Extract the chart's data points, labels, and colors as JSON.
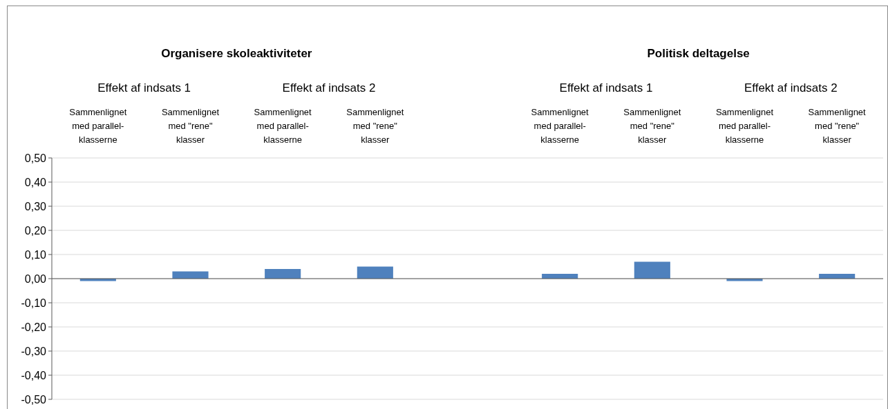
{
  "chart_data": {
    "type": "bar",
    "categories": [
      "Sammenlignet\nmed parallel-\nklasserne",
      "Sammenlignet\nmed \"rene\"\nklasser",
      "Sammenlignet\nmed parallel-\nklasserne",
      "Sammenlignet\nmed \"rene\"\nklasser",
      null,
      "Sammenlignet\nmed parallel-\nklasserne",
      "Sammenlignet\nmed \"rene\"\nklasser",
      "Sammenlignet\nmed parallel-\nklasserne",
      "Sammenlignet\nmed \"rene\"\nklasser"
    ],
    "values": [
      -0.01,
      0.03,
      0.04,
      0.05,
      null,
      0.02,
      0.07,
      -0.01,
      0.02
    ],
    "color": "#4f81bd",
    "annotations": [
      "Organisere skoleaktiviteter",
      "Politisk deltagelse",
      "Effekt af indsats 1",
      "Effekt af indsats 2",
      "Effekt af indsats 1",
      "Effekt af indsats 2"
    ],
    "ylim": [
      -0.5,
      0.5
    ],
    "yticks": [
      {
        "value": -0.5,
        "label": "-0,50"
      },
      {
        "value": -0.4,
        "label": "-0,40"
      },
      {
        "value": -0.3,
        "label": "-0,30"
      },
      {
        "value": -0.2,
        "label": "-0,20"
      },
      {
        "value": -0.1,
        "label": "-0,10"
      },
      {
        "value": 0,
        "label": "0,00"
      },
      {
        "value": 0.1,
        "label": "0,10"
      },
      {
        "value": 0.2,
        "label": "0,20"
      },
      {
        "value": 0.3,
        "label": "0,30"
      },
      {
        "value": 0.4,
        "label": "0,40"
      },
      {
        "value": 0.5,
        "label": "0,50"
      }
    ],
    "grid": "y"
  }
}
